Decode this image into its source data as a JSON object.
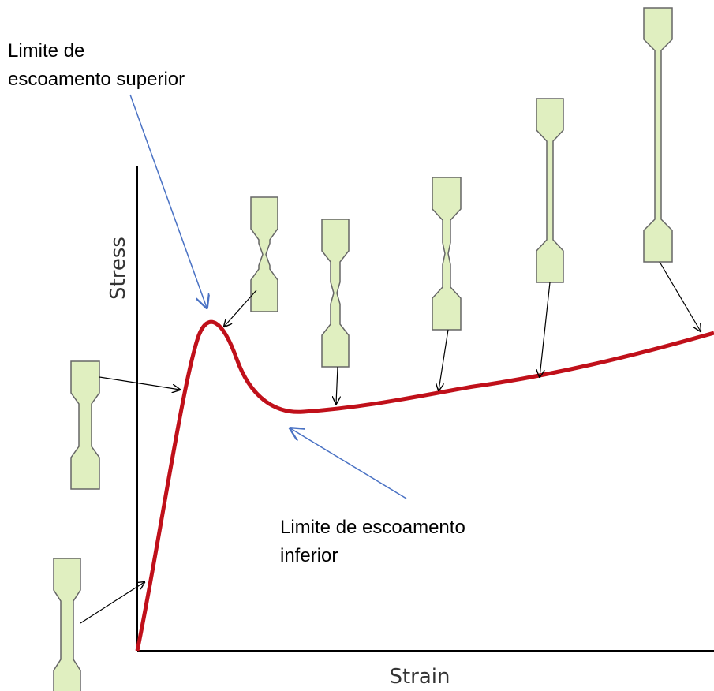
{
  "axes": {
    "x_label": "Strain",
    "y_label": "Stress"
  },
  "annotations": [
    {
      "lines": [
        "Limite de",
        "escoamento superior"
      ]
    },
    {
      "lines": [
        "Limite de escoamento",
        "inferior"
      ]
    }
  ]
}
